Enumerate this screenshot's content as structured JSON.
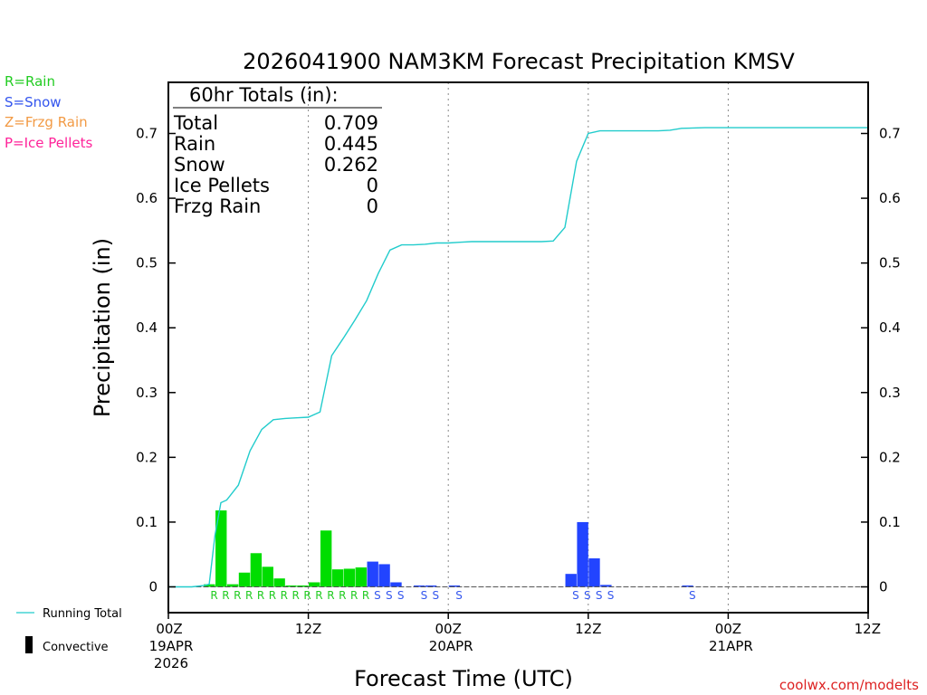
{
  "chart_data": {
    "type": "bar",
    "title": "2026041900 NAM3KM Forecast Precipitation KMSV",
    "ylabel": "Precipitation (in)",
    "xlabel": "Forecast Time (UTC)",
    "ylim": [
      -0.04,
      0.78
    ],
    "xlim_hours": [
      0,
      60
    ],
    "y_ticks": [
      0,
      0.1,
      0.2,
      0.3,
      0.4,
      0.5,
      0.6,
      0.7
    ],
    "y_tick_labels": [
      "0",
      "0.1",
      "0.2",
      "0.3",
      "0.4",
      "0.5",
      "0.6",
      "0.7"
    ],
    "x_ticks": [
      {
        "hour": 0,
        "label": "00Z",
        "date": "19APR",
        "year": "2026"
      },
      {
        "hour": 12,
        "label": "12Z",
        "date": "",
        "year": ""
      },
      {
        "hour": 24,
        "label": "00Z",
        "date": "20APR",
        "year": ""
      },
      {
        "hour": 36,
        "label": "12Z",
        "date": "",
        "year": ""
      },
      {
        "hour": 48,
        "label": "00Z",
        "date": "21APR",
        "year": ""
      },
      {
        "hour": 60,
        "label": "12Z",
        "date": "",
        "year": ""
      }
    ],
    "gridline_hours": [
      12,
      24,
      36,
      48
    ],
    "bars": [
      {
        "hour": 3,
        "value": 0.004,
        "type": "R"
      },
      {
        "hour": 4,
        "value": 0.118,
        "type": "R"
      },
      {
        "hour": 5,
        "value": 0.004,
        "type": "R"
      },
      {
        "hour": 6,
        "value": 0.022,
        "type": "R"
      },
      {
        "hour": 7,
        "value": 0.052,
        "type": "R"
      },
      {
        "hour": 8,
        "value": 0.031,
        "type": "R"
      },
      {
        "hour": 9,
        "value": 0.013,
        "type": "R"
      },
      {
        "hour": 10,
        "value": 0.002,
        "type": "R"
      },
      {
        "hour": 11,
        "value": 0.001,
        "type": "R"
      },
      {
        "hour": 12,
        "value": 0.007,
        "type": "R"
      },
      {
        "hour": 13,
        "value": 0.087,
        "type": "R"
      },
      {
        "hour": 14,
        "value": 0.027,
        "type": "R"
      },
      {
        "hour": 15,
        "value": 0.028,
        "type": "R"
      },
      {
        "hour": 16,
        "value": 0.03,
        "type": "R"
      },
      {
        "hour": 17,
        "value": 0.039,
        "type": "S"
      },
      {
        "hour": 18,
        "value": 0.035,
        "type": "S"
      },
      {
        "hour": 19,
        "value": 0.007,
        "type": "S"
      },
      {
        "hour": 21,
        "value": 0.001,
        "type": "S"
      },
      {
        "hour": 22,
        "value": 0.001,
        "type": "S"
      },
      {
        "hour": 24,
        "value": 0.001,
        "type": "S"
      },
      {
        "hour": 34,
        "value": 0.02,
        "type": "S"
      },
      {
        "hour": 35,
        "value": 0.1,
        "type": "S"
      },
      {
        "hour": 36,
        "value": 0.044,
        "type": "S"
      },
      {
        "hour": 37,
        "value": 0.003,
        "type": "S"
      },
      {
        "hour": 44,
        "value": 0.001,
        "type": "S"
      }
    ],
    "type_letters": [
      {
        "hour": 4,
        "letter": "R"
      },
      {
        "hour": 5,
        "letter": "R"
      },
      {
        "hour": 6,
        "letter": "R"
      },
      {
        "hour": 7,
        "letter": "R"
      },
      {
        "hour": 8,
        "letter": "R"
      },
      {
        "hour": 9,
        "letter": "R"
      },
      {
        "hour": 10,
        "letter": "R"
      },
      {
        "hour": 11,
        "letter": "R"
      },
      {
        "hour": 12,
        "letter": "R"
      },
      {
        "hour": 13,
        "letter": "R"
      },
      {
        "hour": 14,
        "letter": "R"
      },
      {
        "hour": 15,
        "letter": "R"
      },
      {
        "hour": 16,
        "letter": "R"
      },
      {
        "hour": 17,
        "letter": "R"
      },
      {
        "hour": 18,
        "letter": "S"
      },
      {
        "hour": 19,
        "letter": "S"
      },
      {
        "hour": 20,
        "letter": "S"
      },
      {
        "hour": 22,
        "letter": "S"
      },
      {
        "hour": 23,
        "letter": "S"
      },
      {
        "hour": 25,
        "letter": "S"
      },
      {
        "hour": 35,
        "letter": "S"
      },
      {
        "hour": 36,
        "letter": "S"
      },
      {
        "hour": 37,
        "letter": "S"
      },
      {
        "hour": 38,
        "letter": "S"
      },
      {
        "hour": 45,
        "letter": "S"
      }
    ],
    "running_total": {
      "name": "Running Total",
      "x": [
        0,
        2,
        3,
        3.5,
        4,
        4.5,
        5,
        6,
        7,
        8,
        9,
        10,
        11,
        12,
        13,
        14,
        15,
        16,
        17,
        18,
        19,
        20,
        21,
        22,
        23,
        24,
        25,
        26,
        30,
        32,
        33,
        34,
        35,
        36,
        37,
        38,
        40,
        42,
        43,
        44,
        46,
        50,
        55,
        60
      ],
      "y": [
        0,
        0,
        0.002,
        0.004,
        0.08,
        0.13,
        0.134,
        0.157,
        0.21,
        0.243,
        0.258,
        0.26,
        0.261,
        0.262,
        0.27,
        0.357,
        0.384,
        0.412,
        0.442,
        0.484,
        0.52,
        0.528,
        0.528,
        0.529,
        0.531,
        0.531,
        0.532,
        0.533,
        0.533,
        0.533,
        0.534,
        0.555,
        0.657,
        0.7,
        0.704,
        0.704,
        0.704,
        0.704,
        0.705,
        0.708,
        0.709,
        0.709,
        0.709,
        0.709
      ]
    },
    "totals_box": {
      "header": "60hr Totals (in):",
      "rows": [
        {
          "label": "Total",
          "value": "0.709"
        },
        {
          "label": "Rain",
          "value": "0.445"
        },
        {
          "label": "Snow",
          "value": "0.262"
        },
        {
          "label": "Ice Pellets",
          "value": "0"
        },
        {
          "label": "Frzg Rain",
          "value": "0"
        }
      ]
    },
    "type_legend": [
      {
        "text": "R=Rain",
        "color": "#22cc22"
      },
      {
        "text": "S=Snow",
        "color": "#3355ee"
      },
      {
        "text": "Z=Frzg Rain",
        "color": "#f29a44"
      },
      {
        "text": "P=Ice Pellets",
        "color": "#ff2299"
      }
    ],
    "bottom_legend": {
      "running_total": "Running Total",
      "convective": "Convective"
    },
    "credit": "coolwx.com/modelts"
  },
  "colors": {
    "rain": "#00dd00",
    "snow": "#2244ff",
    "rain_letter": "#22cc22",
    "snow_letter": "#3355ee",
    "running_total": "#22cccc",
    "credit": "#dd2222"
  }
}
